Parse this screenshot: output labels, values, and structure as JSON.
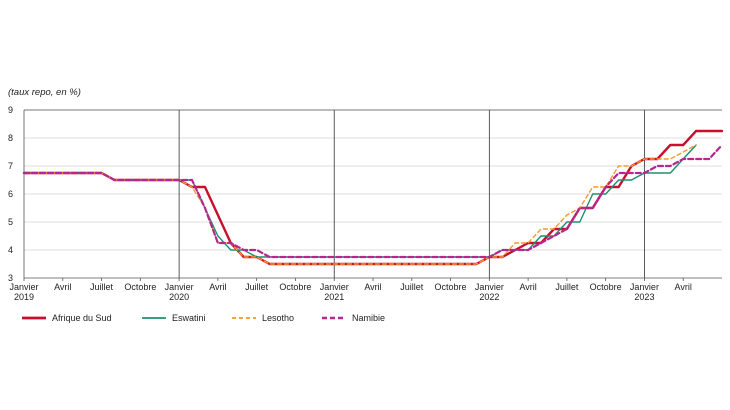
{
  "chart_data": {
    "type": "line",
    "unit_label": "(taux repo, en %)",
    "ylim": [
      3,
      9
    ],
    "yticks": [
      3,
      4,
      5,
      6,
      7,
      8,
      9
    ],
    "grid": "horizontal",
    "year_dividers": [
      "2020-01",
      "2021-01",
      "2022-01",
      "2023-01"
    ],
    "x_range": [
      "2019-01",
      "2023-07"
    ],
    "x_ticks": [
      {
        "at": "2019-01",
        "line1": "Janvier",
        "line2": "2019"
      },
      {
        "at": "2019-04",
        "line1": "Avril",
        "line2": ""
      },
      {
        "at": "2019-07",
        "line1": "Juillet",
        "line2": ""
      },
      {
        "at": "2019-10",
        "line1": "Octobre",
        "line2": ""
      },
      {
        "at": "2020-01",
        "line1": "Janvier",
        "line2": "2020"
      },
      {
        "at": "2020-04",
        "line1": "Avril",
        "line2": ""
      },
      {
        "at": "2020-07",
        "line1": "Juillet",
        "line2": ""
      },
      {
        "at": "2020-10",
        "line1": "Octobre",
        "line2": ""
      },
      {
        "at": "2021-01",
        "line1": "Janvier",
        "line2": "2021"
      },
      {
        "at": "2021-04",
        "line1": "Avril",
        "line2": ""
      },
      {
        "at": "2021-07",
        "line1": "Juillet",
        "line2": ""
      },
      {
        "at": "2021-10",
        "line1": "Octobre",
        "line2": ""
      },
      {
        "at": "2022-01",
        "line1": "Janvier",
        "line2": "2022"
      },
      {
        "at": "2022-04",
        "line1": "Avril",
        "line2": ""
      },
      {
        "at": "2022-07",
        "line1": "Juillet",
        "line2": ""
      },
      {
        "at": "2022-10",
        "line1": "Octobre",
        "line2": ""
      },
      {
        "at": "2023-01",
        "line1": "Janvier",
        "line2": "2023"
      },
      {
        "at": "2023-04",
        "line1": "Avril",
        "line2": ""
      }
    ],
    "series": [
      {
        "name": "Afrique du Sud",
        "color": "#c8102e",
        "style": "solid",
        "points": [
          [
            "2019-01",
            6.75
          ],
          [
            "2019-07",
            6.75
          ],
          [
            "2019-08",
            6.5
          ],
          [
            "2019-12",
            6.5
          ],
          [
            "2020-01",
            6.5
          ],
          [
            "2020-02",
            6.25
          ],
          [
            "2020-03",
            6.25
          ],
          [
            "2020-04",
            5.25
          ],
          [
            "2020-05",
            4.25
          ],
          [
            "2020-06",
            3.75
          ],
          [
            "2020-07",
            3.75
          ],
          [
            "2020-08",
            3.5
          ],
          [
            "2021-12",
            3.5
          ],
          [
            "2022-01",
            3.75
          ],
          [
            "2022-02",
            3.75
          ],
          [
            "2022-03",
            4.0
          ],
          [
            "2022-04",
            4.25
          ],
          [
            "2022-05",
            4.25
          ],
          [
            "2022-06",
            4.75
          ],
          [
            "2022-07",
            4.75
          ],
          [
            "2022-08",
            5.5
          ],
          [
            "2022-09",
            5.5
          ],
          [
            "2022-10",
            6.25
          ],
          [
            "2022-11",
            6.25
          ],
          [
            "2022-12",
            7.0
          ],
          [
            "2023-01",
            7.25
          ],
          [
            "2023-02",
            7.25
          ],
          [
            "2023-03",
            7.75
          ],
          [
            "2023-04",
            7.75
          ],
          [
            "2023-05",
            8.25
          ],
          [
            "2023-07",
            8.25
          ]
        ]
      },
      {
        "name": "Eswatini",
        "color": "#1a9070",
        "style": "solid",
        "points": [
          [
            "2019-01",
            6.75
          ],
          [
            "2019-07",
            6.75
          ],
          [
            "2019-08",
            6.5
          ],
          [
            "2020-01",
            6.5
          ],
          [
            "2020-02",
            6.5
          ],
          [
            "2020-04",
            4.5
          ],
          [
            "2020-05",
            4.0
          ],
          [
            "2020-06",
            4.0
          ],
          [
            "2020-07",
            3.75
          ],
          [
            "2021-12",
            3.75
          ],
          [
            "2022-01",
            3.75
          ],
          [
            "2022-02",
            4.0
          ],
          [
            "2022-03",
            4.0
          ],
          [
            "2022-04",
            4.0
          ],
          [
            "2022-05",
            4.5
          ],
          [
            "2022-06",
            4.5
          ],
          [
            "2022-07",
            5.0
          ],
          [
            "2022-08",
            5.0
          ],
          [
            "2022-09",
            6.0
          ],
          [
            "2022-10",
            6.0
          ],
          [
            "2022-11",
            6.5
          ],
          [
            "2022-12",
            6.5
          ],
          [
            "2023-01",
            6.75
          ],
          [
            "2023-03",
            6.75
          ],
          [
            "2023-04",
            7.25
          ],
          [
            "2023-05",
            7.75
          ]
        ]
      },
      {
        "name": "Lesotho",
        "color": "#f39a2c",
        "style": "dashed",
        "points": [
          [
            "2019-01",
            6.75
          ],
          [
            "2019-07",
            6.75
          ],
          [
            "2019-08",
            6.5
          ],
          [
            "2020-01",
            6.5
          ],
          [
            "2020-02",
            6.25
          ],
          [
            "2020-03",
            5.5
          ],
          [
            "2020-04",
            4.25
          ],
          [
            "2020-05",
            4.25
          ],
          [
            "2020-06",
            3.75
          ],
          [
            "2020-07",
            3.75
          ],
          [
            "2020-08",
            3.5
          ],
          [
            "2021-12",
            3.5
          ],
          [
            "2022-01",
            3.75
          ],
          [
            "2022-02",
            3.75
          ],
          [
            "2022-03",
            4.25
          ],
          [
            "2022-04",
            4.25
          ],
          [
            "2022-05",
            4.75
          ],
          [
            "2022-06",
            4.75
          ],
          [
            "2022-07",
            5.25
          ],
          [
            "2022-08",
            5.5
          ],
          [
            "2022-09",
            6.25
          ],
          [
            "2022-10",
            6.25
          ],
          [
            "2022-11",
            7.0
          ],
          [
            "2022-12",
            7.0
          ],
          [
            "2023-01",
            7.25
          ],
          [
            "2023-03",
            7.25
          ],
          [
            "2023-04",
            7.5
          ],
          [
            "2023-05",
            7.75
          ]
        ]
      },
      {
        "name": "Namibie",
        "color": "#b5268f",
        "style": "dashed",
        "points": [
          [
            "2019-01",
            6.75
          ],
          [
            "2019-06",
            6.75
          ],
          [
            "2019-07",
            6.75
          ],
          [
            "2019-08",
            6.5
          ],
          [
            "2020-01",
            6.5
          ],
          [
            "2020-02",
            6.5
          ],
          [
            "2020-03",
            5.5
          ],
          [
            "2020-04",
            4.25
          ],
          [
            "2020-05",
            4.25
          ],
          [
            "2020-06",
            4.0
          ],
          [
            "2020-07",
            4.0
          ],
          [
            "2020-08",
            3.75
          ],
          [
            "2021-12",
            3.75
          ],
          [
            "2022-01",
            3.75
          ],
          [
            "2022-02",
            4.0
          ],
          [
            "2022-03",
            4.0
          ],
          [
            "2022-04",
            4.0
          ],
          [
            "2022-05",
            4.25
          ],
          [
            "2022-06",
            4.5
          ],
          [
            "2022-07",
            4.75
          ],
          [
            "2022-08",
            5.5
          ],
          [
            "2022-09",
            5.5
          ],
          [
            "2022-10",
            6.25
          ],
          [
            "2022-11",
            6.75
          ],
          [
            "2023-01",
            6.75
          ],
          [
            "2023-02",
            7.0
          ],
          [
            "2023-03",
            7.0
          ],
          [
            "2023-04",
            7.25
          ],
          [
            "2023-06",
            7.25
          ],
          [
            "2023-07",
            7.75
          ]
        ]
      }
    ]
  }
}
